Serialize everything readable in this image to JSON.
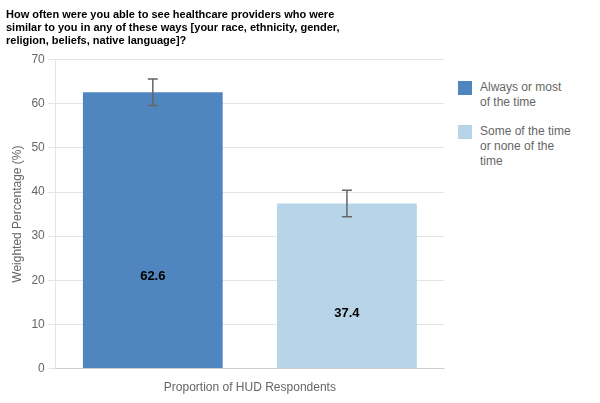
{
  "chart_data": {
    "type": "bar",
    "title": "How often were you able to see healthcare providers who were\nsimilar to you in any of these ways [your race, ethnicity, gender,\nreligion, beliefs, native language]?",
    "xlabel": "Proportion of HUD Respondents",
    "ylabel": "Weighted Percentage (%)",
    "categories": [
      "Always or most\nof the time",
      "Some of the time\nor none of the\ntime"
    ],
    "values": [
      62.6,
      37.4
    ],
    "errors": [
      3.0,
      3.0
    ],
    "colors": [
      "#4f86c0",
      "#b8d4e8"
    ],
    "ylim": [
      0,
      70
    ],
    "yticks": [
      0,
      10,
      20,
      30,
      40,
      50,
      60,
      70
    ],
    "grid": true,
    "legend": "right",
    "data_labels": true,
    "tick_labels": "y"
  }
}
